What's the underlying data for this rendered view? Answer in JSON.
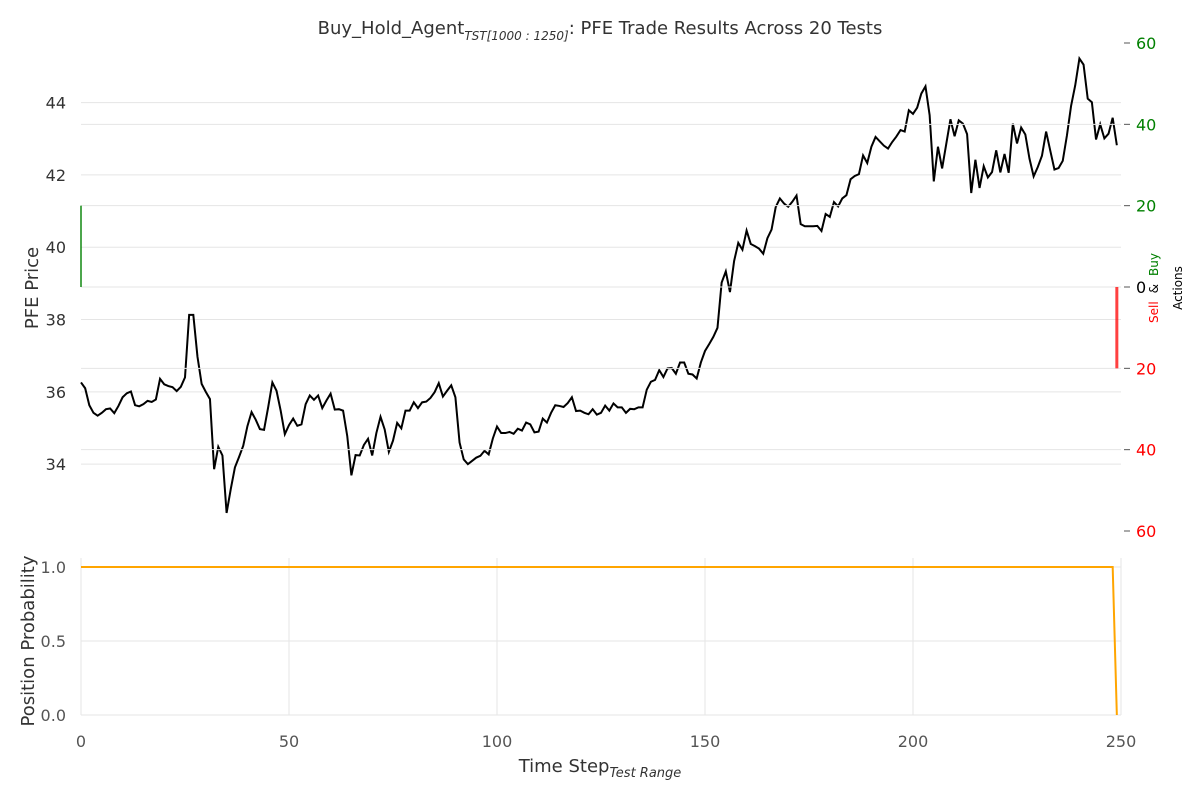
{
  "title": {
    "prefix": "Buy_Hold_Agent",
    "subscript": "TST[1000 : 1250]",
    "suffix": ": PFE Trade Results Across 20 Tests"
  },
  "colors": {
    "price_line": "#000000",
    "position_line": "#ffa500",
    "buy": "#008000",
    "sell": "#ff0000",
    "grid": "#e5e5e5"
  },
  "chart_data": [
    {
      "type": "line",
      "ylabel": "PFE Price",
      "xlim": [
        0,
        250
      ],
      "ylim": [
        32.4,
        45.4
      ],
      "yticks": [
        "34",
        "36",
        "38",
        "40",
        "42",
        "44"
      ],
      "grid": true,
      "series": [
        {
          "x": [
            0,
            1,
            2,
            3,
            4,
            5,
            6,
            7,
            8,
            9,
            10,
            11,
            12,
            13,
            14,
            15,
            16,
            17,
            18,
            19,
            20,
            21,
            22,
            23,
            24,
            25,
            26,
            27,
            28,
            29,
            30,
            31,
            32,
            33,
            34,
            35,
            36,
            37,
            38,
            39,
            40,
            41,
            42,
            43,
            44,
            45,
            46,
            47,
            48,
            49,
            50,
            51,
            52,
            53,
            54,
            55,
            56,
            57,
            58,
            59,
            60,
            61,
            62,
            63,
            64,
            65,
            66,
            67,
            68,
            69,
            70,
            71,
            72,
            73,
            74,
            75,
            76,
            77,
            78,
            79,
            80,
            81,
            82,
            83,
            84,
            85,
            86,
            87,
            88,
            89,
            90,
            91,
            92,
            93,
            94,
            95,
            96,
            97,
            98,
            99,
            100,
            101,
            102,
            103,
            104,
            105,
            106,
            107,
            108,
            109,
            110,
            111,
            112,
            113,
            114,
            115,
            116,
            117,
            118,
            119,
            120,
            121,
            122,
            123,
            124,
            125,
            126,
            127,
            128,
            129,
            130,
            131,
            132,
            133,
            134,
            135,
            136,
            137,
            138,
            139,
            140,
            141,
            142,
            143,
            144,
            145,
            146,
            147,
            148,
            149,
            150,
            151,
            152,
            153,
            154,
            155,
            156,
            157,
            158,
            159,
            160,
            161,
            162,
            163,
            164,
            165,
            166,
            167,
            168,
            169,
            170,
            171,
            172,
            173,
            174,
            175,
            176,
            177,
            178,
            179,
            180,
            181,
            182,
            183,
            184,
            185,
            186,
            187,
            188,
            189,
            190,
            191,
            192,
            193,
            194,
            195,
            196,
            197,
            198,
            199,
            200,
            201,
            202,
            203,
            204,
            205,
            206,
            207,
            208,
            209,
            210,
            211,
            212,
            213,
            214,
            215,
            216,
            217,
            218,
            219,
            220,
            221,
            222,
            223,
            224,
            225,
            226,
            227,
            228,
            229,
            230,
            231,
            232,
            233,
            234,
            235,
            236,
            237,
            238,
            239,
            240,
            241,
            242,
            243,
            244,
            245,
            246,
            247,
            248,
            249
          ],
          "y": [
            36.26,
            36.1,
            35.63,
            35.42,
            35.34,
            35.42,
            35.52,
            35.54,
            35.41,
            35.61,
            35.85,
            35.96,
            36.01,
            35.63,
            35.6,
            35.66,
            35.75,
            35.72,
            35.79,
            36.36,
            36.21,
            36.16,
            36.13,
            36.02,
            36.14,
            36.4,
            38.13,
            38.13,
            36.97,
            36.22,
            36.0,
            35.8,
            33.86,
            34.48,
            34.24,
            32.65,
            33.31,
            33.91,
            34.2,
            34.51,
            35.05,
            35.44,
            35.23,
            34.97,
            34.95,
            35.58,
            36.26,
            36.03,
            35.48,
            34.83,
            35.08,
            35.26,
            35.06,
            35.1,
            35.66,
            35.9,
            35.78,
            35.9,
            35.55,
            35.76,
            35.95,
            35.51,
            35.52,
            35.48,
            34.78,
            33.69,
            34.25,
            34.24,
            34.53,
            34.7,
            34.24,
            34.86,
            35.31,
            34.96,
            34.34,
            34.65,
            35.14,
            34.99,
            35.48,
            35.48,
            35.71,
            35.55,
            35.71,
            35.73,
            35.83,
            35.99,
            36.24,
            35.87,
            36.03,
            36.18,
            35.85,
            34.6,
            34.13,
            34.0,
            34.09,
            34.18,
            34.23,
            34.37,
            34.27,
            34.71,
            35.04,
            34.86,
            34.86,
            34.89,
            34.84,
            34.98,
            34.93,
            35.15,
            35.1,
            34.88,
            34.9,
            35.26,
            35.15,
            35.42,
            35.63,
            35.61,
            35.58,
            35.69,
            35.85,
            35.47,
            35.48,
            35.42,
            35.38,
            35.52,
            35.37,
            35.42,
            35.62,
            35.48,
            35.68,
            35.57,
            35.57,
            35.42,
            35.53,
            35.52,
            35.57,
            35.57,
            36.06,
            36.28,
            36.33,
            36.6,
            36.41,
            36.65,
            36.66,
            36.5,
            36.81,
            36.81,
            36.5,
            36.48,
            36.37,
            36.81,
            37.13,
            37.32,
            37.52,
            37.77,
            39.02,
            39.33,
            38.76,
            39.62,
            40.12,
            39.93,
            40.46,
            40.09,
            40.03,
            39.96,
            39.82,
            40.25,
            40.49,
            41.11,
            41.35,
            41.21,
            41.12,
            41.26,
            41.43,
            40.64,
            40.58,
            40.58,
            40.58,
            40.59,
            40.45,
            40.92,
            40.84,
            41.25,
            41.13,
            41.35,
            41.44,
            41.88,
            41.97,
            42.02,
            42.54,
            42.33,
            42.78,
            43.05,
            42.93,
            42.81,
            42.73,
            42.91,
            43.06,
            43.24,
            43.2,
            43.79,
            43.69,
            43.86,
            44.25,
            44.45,
            43.65,
            41.82,
            42.78,
            42.18,
            42.86,
            43.54,
            43.07,
            43.51,
            43.42,
            43.13,
            41.5,
            42.42,
            41.64,
            42.24,
            41.93,
            42.08,
            42.68,
            42.07,
            42.58,
            42.06,
            43.42,
            42.87,
            43.31,
            43.12,
            42.45,
            41.96,
            42.22,
            42.53,
            43.2,
            42.67,
            42.15,
            42.19,
            42.39,
            43.09,
            43.91,
            44.48,
            45.22,
            45.05,
            44.11,
            44.01,
            42.98,
            43.4,
            43.01,
            43.14,
            43.58,
            42.82
          ]
        }
      ]
    },
    {
      "type": "bar",
      "ylabel_parts": [
        "Sell",
        "&",
        "Buy",
        "Actions"
      ],
      "ylim": [
        -60,
        60
      ],
      "yticks": [
        "60",
        "40",
        "20",
        "0",
        "20",
        "40",
        "60"
      ],
      "series": [
        {
          "name": "Buy",
          "x": [
            0
          ],
          "values": [
            20
          ]
        },
        {
          "name": "Sell",
          "x": [
            249
          ],
          "values": [
            20
          ]
        }
      ]
    },
    {
      "type": "line",
      "ylabel": "Position Probability",
      "xlabel": "Time Step",
      "xlabel_subscript": "Test Range",
      "xlim": [
        0,
        250
      ],
      "ylim": [
        0,
        1.0
      ],
      "xticks": [
        "0",
        "50",
        "100",
        "150",
        "200",
        "250"
      ],
      "yticks": [
        "0.0",
        "0.5",
        "1.0"
      ],
      "grid": true,
      "series": [
        {
          "x": [
            0,
            248,
            249
          ],
          "y": [
            1.0,
            1.0,
            0.0
          ]
        }
      ]
    }
  ]
}
